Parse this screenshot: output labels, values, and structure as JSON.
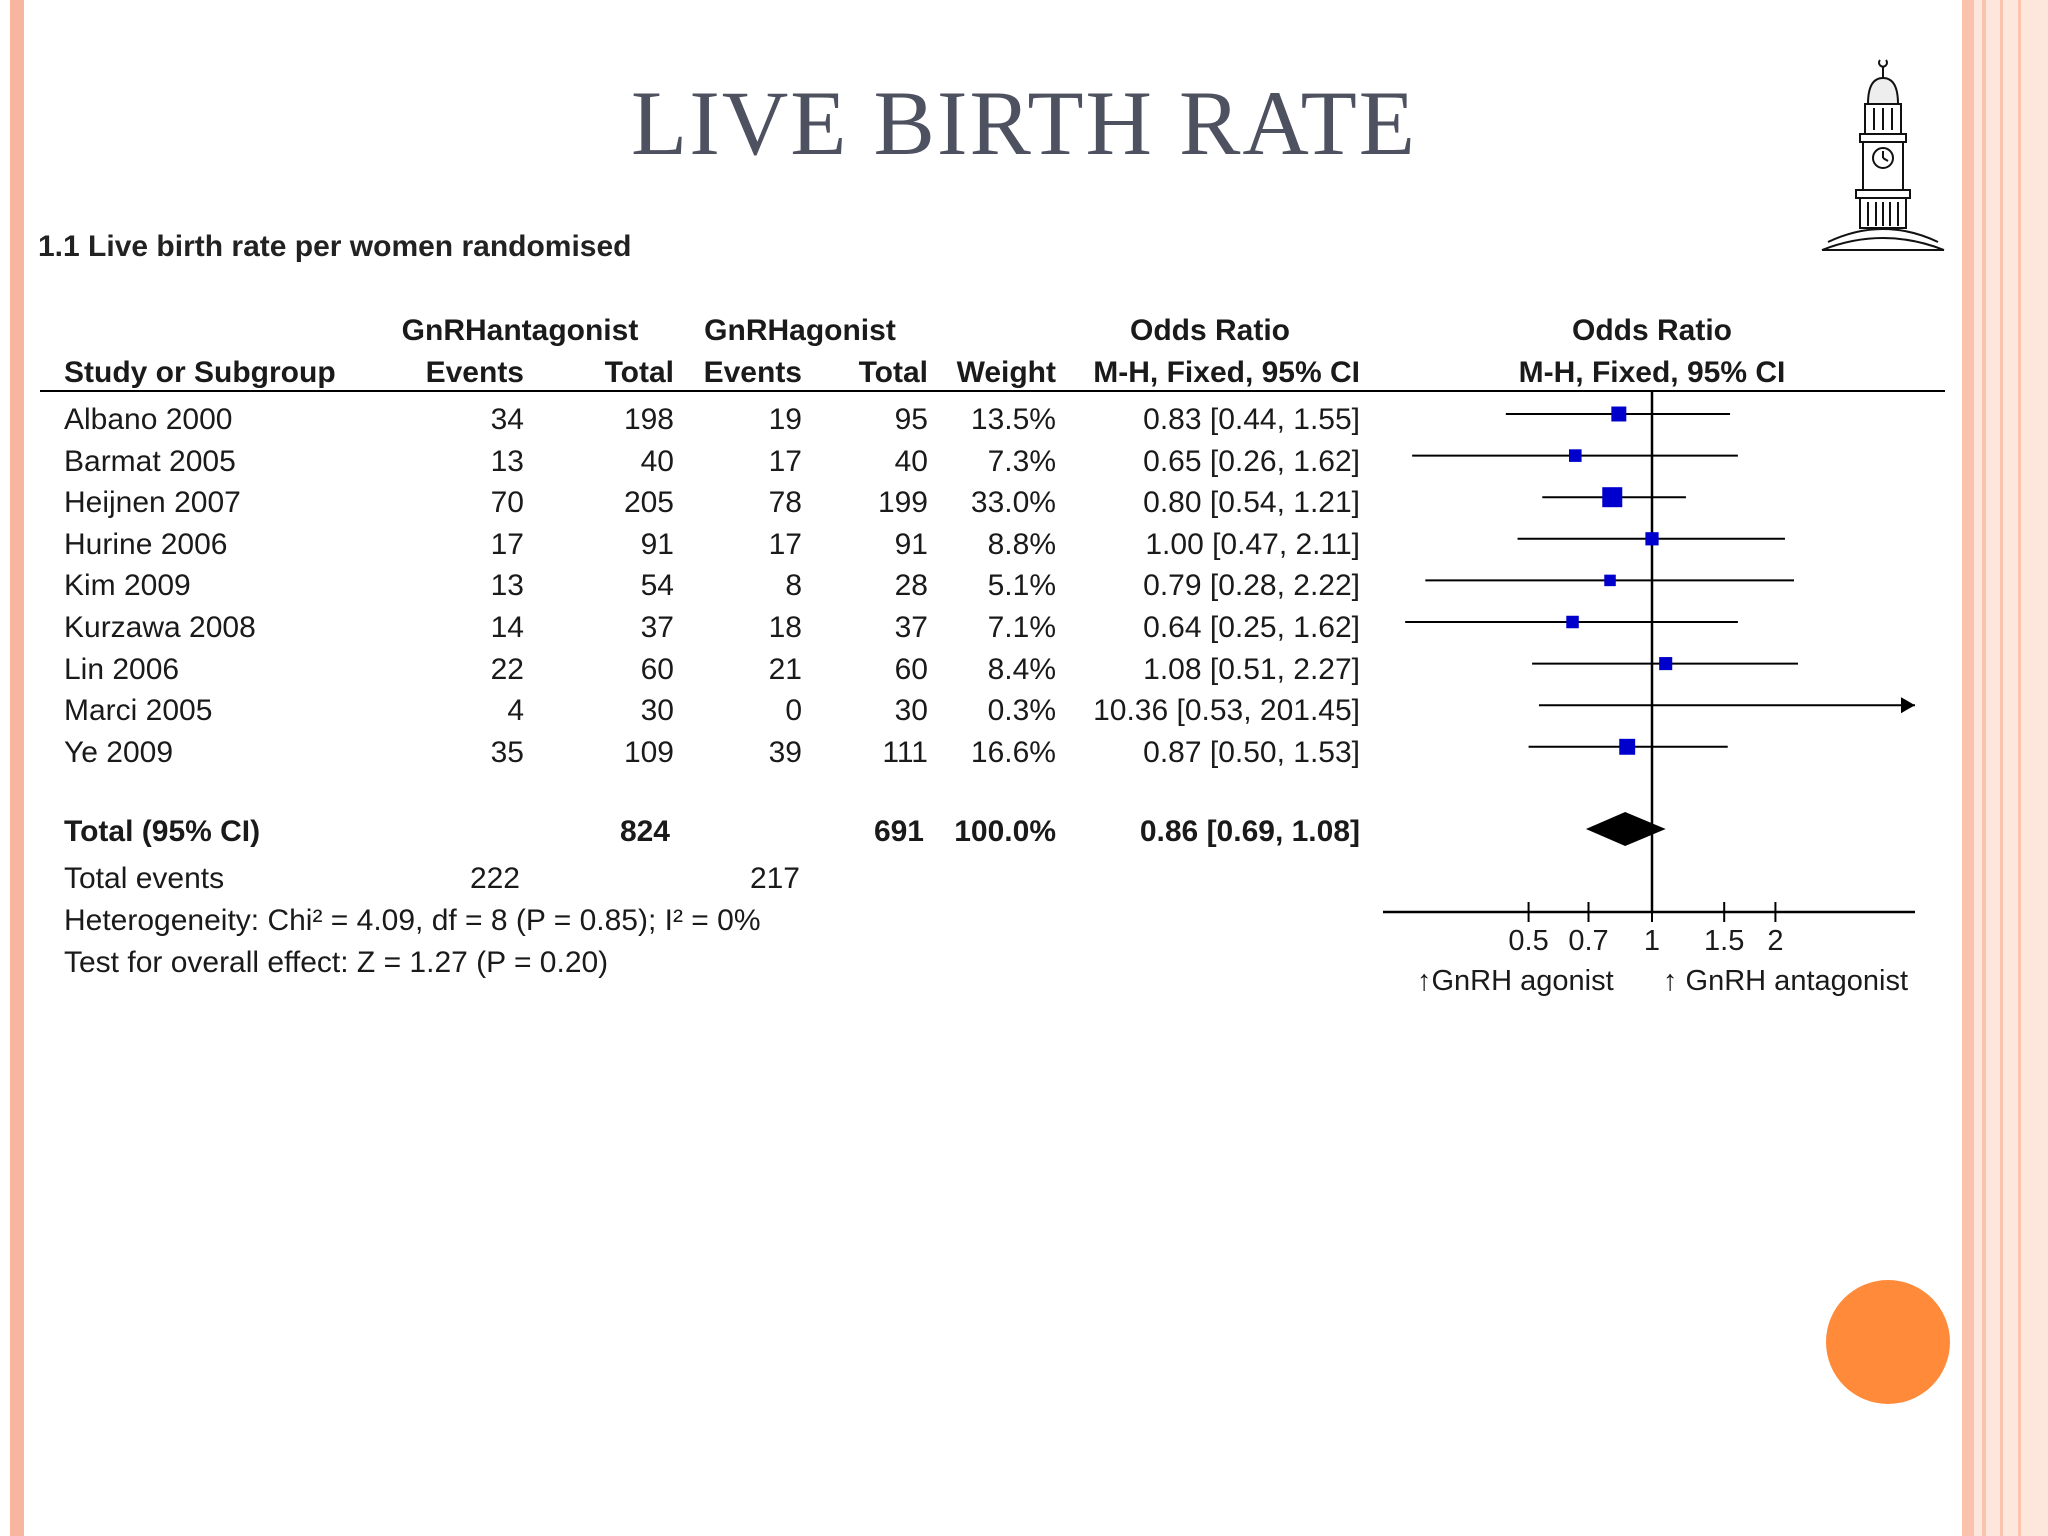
{
  "slide": {
    "title": "LIVE BIRTH RATE",
    "subtitle": "1.1 Live birth rate per women randomised",
    "logo_icon": "clock-tower-icon",
    "accent_colors": {
      "stripe": "#f8b59f",
      "band": "#fde6dc",
      "dot": "#ff8a3a",
      "marker": "#0000cc"
    }
  },
  "table": {
    "group_headers": {
      "antagonist": "GnRHantagonist",
      "agonist": "GnRHagonist",
      "or_left": "Odds Ratio",
      "or_right": "Odds Ratio"
    },
    "columns": {
      "study": "Study or Subgroup",
      "ant_events": "Events",
      "ant_total": "Total",
      "ago_events": "Events",
      "ago_total": "Total",
      "weight": "Weight",
      "or_ci": "M-H, Fixed, 95% CI",
      "plot": "M-H, Fixed, 95% CI"
    },
    "rows": [
      {
        "study": "Albano 2000",
        "ant_events": "34",
        "ant_total": "198",
        "ago_events": "19",
        "ago_total": "95",
        "weight": "13.5%",
        "ci_text": "0.83 [0.44, 1.55]"
      },
      {
        "study": "Barmat 2005",
        "ant_events": "13",
        "ant_total": "40",
        "ago_events": "17",
        "ago_total": "40",
        "weight": "7.3%",
        "ci_text": "0.65 [0.26, 1.62]"
      },
      {
        "study": "Heijnen 2007",
        "ant_events": "70",
        "ant_total": "205",
        "ago_events": "78",
        "ago_total": "199",
        "weight": "33.0%",
        "ci_text": "0.80 [0.54, 1.21]"
      },
      {
        "study": "Hurine 2006",
        "ant_events": "17",
        "ant_total": "91",
        "ago_events": "17",
        "ago_total": "91",
        "weight": "8.8%",
        "ci_text": "1.00 [0.47, 2.11]"
      },
      {
        "study": "Kim 2009",
        "ant_events": "13",
        "ant_total": "54",
        "ago_events": "8",
        "ago_total": "28",
        "weight": "5.1%",
        "ci_text": "0.79 [0.28, 2.22]"
      },
      {
        "study": "Kurzawa 2008",
        "ant_events": "14",
        "ant_total": "37",
        "ago_events": "18",
        "ago_total": "37",
        "weight": "7.1%",
        "ci_text": "0.64 [0.25, 1.62]"
      },
      {
        "study": "Lin 2006",
        "ant_events": "22",
        "ant_total": "60",
        "ago_events": "21",
        "ago_total": "60",
        "weight": "8.4%",
        "ci_text": "1.08 [0.51, 2.27]"
      },
      {
        "study": "Marci 2005",
        "ant_events": "4",
        "ant_total": "30",
        "ago_events": "0",
        "ago_total": "30",
        "weight": "0.3%",
        "ci_text": "10.36 [0.53, 201.45]"
      },
      {
        "study": "Ye 2009",
        "ant_events": "35",
        "ant_total": "109",
        "ago_events": "39",
        "ago_total": "111",
        "weight": "16.6%",
        "ci_text": "0.87 [0.50, 1.53]"
      }
    ],
    "total": {
      "label": "Total (95% CI)",
      "ant_total": "824",
      "ago_total": "691",
      "weight": "100.0%",
      "ci_text": "0.86 [0.69, 1.08]"
    },
    "total_events": {
      "label": "Total events",
      "ant": "222",
      "ago": "217"
    },
    "heterogeneity": "Heterogeneity: Chi² = 4.09, df = 8 (P = 0.85); I² = 0%",
    "overall_effect": "Test for overall effect: Z = 1.27 (P = 0.20)"
  },
  "chart_data": {
    "type": "forest",
    "scale": "log",
    "xlim": [
      0.2,
      5
    ],
    "reference_line": 1,
    "ticks": [
      {
        "value": 0.5,
        "label": "0.5"
      },
      {
        "value": 0.7,
        "label": "0.7"
      },
      {
        "value": 1,
        "label": "1"
      },
      {
        "value": 1.5,
        "label": "1.5"
      },
      {
        "value": 2,
        "label": "2"
      }
    ],
    "left_label": "↑GnRH  agonist",
    "right_label": "↑ GnRH antagonist",
    "studies": [
      {
        "name": "Albano 2000",
        "or": 0.83,
        "lo": 0.44,
        "hi": 1.55,
        "weight": 13.5
      },
      {
        "name": "Barmat 2005",
        "or": 0.65,
        "lo": 0.26,
        "hi": 1.62,
        "weight": 7.3
      },
      {
        "name": "Heijnen 2007",
        "or": 0.8,
        "lo": 0.54,
        "hi": 1.21,
        "weight": 33.0
      },
      {
        "name": "Hurine 2006",
        "or": 1.0,
        "lo": 0.47,
        "hi": 2.11,
        "weight": 8.8
      },
      {
        "name": "Kim 2009",
        "or": 0.79,
        "lo": 0.28,
        "hi": 2.22,
        "weight": 5.1
      },
      {
        "name": "Kurzawa 2008",
        "or": 0.64,
        "lo": 0.25,
        "hi": 1.62,
        "weight": 7.1
      },
      {
        "name": "Lin 2006",
        "or": 1.08,
        "lo": 0.51,
        "hi": 2.27,
        "weight": 8.4
      },
      {
        "name": "Marci 2005",
        "or": 10.36,
        "lo": 0.53,
        "hi": 201.45,
        "weight": 0.3
      },
      {
        "name": "Ye 2009",
        "or": 0.87,
        "lo": 0.5,
        "hi": 1.53,
        "weight": 16.6
      }
    ],
    "pooled": {
      "or": 0.86,
      "lo": 0.69,
      "hi": 1.08
    }
  }
}
